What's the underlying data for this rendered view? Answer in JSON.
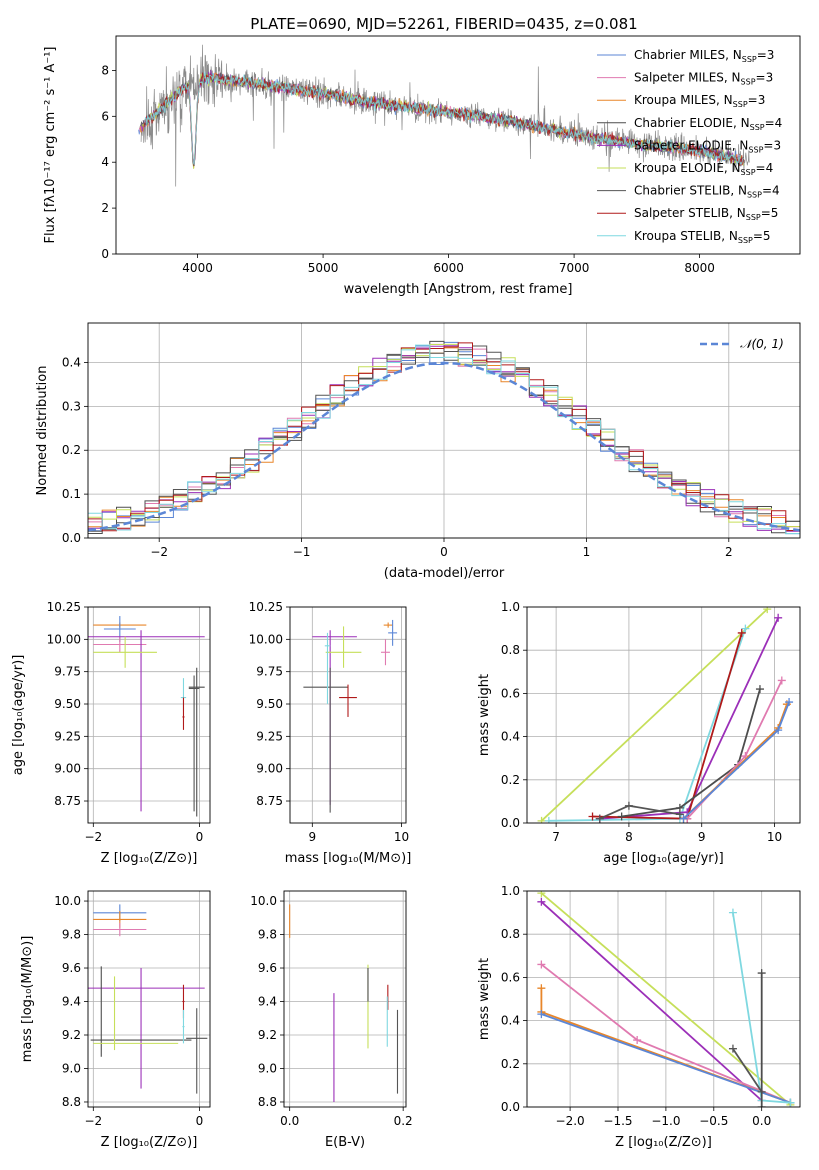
{
  "colors": {
    "chabrier_miles": "#5b86d6",
    "salpeter_miles": "#e07ab0",
    "kroupa_miles": "#e8862a",
    "chabrier_elodie": "#4d4d4d",
    "salpeter_elodie": "#9b2fb8",
    "kroupa_elodie": "#c6df5a",
    "chabrier_stelib": "#555555",
    "salpeter_stelib": "#b01a1a",
    "kroupa_stelib": "#7fd8e0",
    "data": "#8a8a8a"
  },
  "chart_data": [
    {
      "id": "spectrum",
      "type": "line",
      "title": "PLATE=0690, MJD=52261, FIBERID=0435, z=0.081",
      "xlabel": "wavelength [Angstrom, rest frame]",
      "ylabel": "Flux [fλ10⁻¹⁷ erg cm⁻² s⁻¹ A⁻¹]",
      "xlim": [
        3350,
        8800
      ],
      "ylim": [
        0,
        9.5
      ],
      "xticks": [
        "4000",
        "5000",
        "6000",
        "7000",
        "8000"
      ],
      "yticks": [
        "0",
        "2",
        "4",
        "6",
        "8"
      ],
      "legend_position": "right",
      "legend": [
        {
          "label": "Chabrier MILES, N",
          "sub": "SSP",
          "suffix": "=3",
          "key": "chabrier_miles"
        },
        {
          "label": "Salpeter MILES, N",
          "sub": "SSP",
          "suffix": "=3",
          "key": "salpeter_miles"
        },
        {
          "label": "Kroupa MILES, N",
          "sub": "SSP",
          "suffix": "=3",
          "key": "kroupa_miles"
        },
        {
          "label": "Chabrier ELODIE, N",
          "sub": "SSP",
          "suffix": "=4",
          "key": "chabrier_elodie"
        },
        {
          "label": "Salpeter ELODIE, N",
          "sub": "SSP",
          "suffix": "=3",
          "key": "salpeter_elodie"
        },
        {
          "label": "Kroupa ELODIE, N",
          "sub": "SSP",
          "suffix": "=4",
          "key": "kroupa_elodie"
        },
        {
          "label": "Chabrier STELIB, N",
          "sub": "SSP",
          "suffix": "=4",
          "key": "chabrier_stelib"
        },
        {
          "label": "Salpeter STELIB, N",
          "sub": "SSP",
          "suffix": "=5",
          "key": "salpeter_stelib"
        },
        {
          "label": "Kroupa STELIB, N",
          "sub": "SSP",
          "suffix": "=5",
          "key": "kroupa_stelib"
        }
      ],
      "continuum": {
        "x": [
          3550,
          3700,
          3900,
          4100,
          4500,
          5000,
          5500,
          6000,
          6500,
          7000,
          7500,
          8000,
          8400
        ],
        "y": [
          5.5,
          6.3,
          7.3,
          7.7,
          7.4,
          7.0,
          6.5,
          6.2,
          5.8,
          5.2,
          4.8,
          4.5,
          4.0
        ]
      }
    },
    {
      "id": "residuals",
      "type": "line",
      "xlabel": "(data-model)/error",
      "ylabel": "Normed distribution",
      "xlim": [
        -2.5,
        2.5
      ],
      "ylim": [
        0,
        0.49
      ],
      "xticks": [
        "−2",
        "−1",
        "0",
        "1",
        "2"
      ],
      "yticks": [
        "0.0",
        "0.1",
        "0.2",
        "0.3",
        "0.4"
      ],
      "legend_position": "top-right",
      "legend": [
        {
          "label": "𝒩(0, 1)",
          "key": "chabrier_miles"
        }
      ],
      "bin_width": 0.1
    },
    {
      "id": "age_vs_Z",
      "type": "scatter",
      "xlabel": "Z [log₁₀(Z/Z⊙)]",
      "ylabel": "age  [log₁₀(age/yr)]",
      "xlim": [
        -2.1,
        0.2
      ],
      "ylim": [
        8.58,
        10.25
      ],
      "xticks": [
        "−2",
        "0"
      ],
      "yticks": [
        "8.75",
        "9.00",
        "9.25",
        "9.50",
        "9.75",
        "10.00",
        "10.25"
      ],
      "points": [
        {
          "key": "kroupa_miles",
          "x": -1.5,
          "y": 10.11,
          "xerr": [
            0.5,
            0.5
          ],
          "yerr": [
            0.02,
            0.02
          ]
        },
        {
          "key": "chabrier_miles",
          "x": -1.5,
          "y": 10.08,
          "xerr": [
            0.3,
            0.3
          ],
          "yerr": [
            0.1,
            0.1
          ]
        },
        {
          "key": "salpeter_miles",
          "x": -1.5,
          "y": 9.96,
          "xerr": [
            0.5,
            0.5
          ],
          "yerr": [
            0.06,
            0.06
          ]
        },
        {
          "key": "salpeter_elodie",
          "x": -1.1,
          "y": 10.02,
          "xerr": [
            1.2,
            1.2
          ],
          "yerr": [
            1.35,
            0.05
          ]
        },
        {
          "key": "kroupa_elodie",
          "x": -1.4,
          "y": 9.9,
          "xerr": [
            0.6,
            0.6
          ],
          "yerr": [
            0.12,
            0.12
          ]
        },
        {
          "key": "chabrier_elodie",
          "x": -0.05,
          "y": 9.63,
          "xerr": [
            0.15,
            0.15
          ],
          "yerr": [
            1.0,
            0.15
          ]
        },
        {
          "key": "chabrier_stelib",
          "x": -0.1,
          "y": 9.62,
          "xerr": [
            0.1,
            0.1
          ],
          "yerr": [
            0.95,
            0.1
          ]
        },
        {
          "key": "kroupa_stelib",
          "x": -0.3,
          "y": 9.55,
          "xerr": [
            0.05,
            0.05
          ],
          "yerr": [
            0.1,
            0.15
          ]
        },
        {
          "key": "salpeter_stelib",
          "x": -0.3,
          "y": 9.4,
          "xerr": [
            0.02,
            0.02
          ],
          "yerr": [
            0.1,
            0.15
          ]
        }
      ]
    },
    {
      "id": "age_vs_mass",
      "type": "scatter",
      "xlabel": "mass [log₁₀(M/M⊙)]",
      "ylabel": "",
      "xlim": [
        8.75,
        10.05
      ],
      "ylim": [
        8.58,
        10.25
      ],
      "xticks": [
        "9",
        "10"
      ],
      "yticks": [
        "8.75",
        "9.00",
        "9.25",
        "9.50",
        "9.75",
        "10.00",
        "10.25"
      ],
      "points": [
        {
          "key": "kroupa_miles",
          "x": 9.85,
          "y": 10.11,
          "xerr": [
            0.05,
            0.05
          ],
          "yerr": [
            0.02,
            0.02
          ]
        },
        {
          "key": "chabrier_miles",
          "x": 9.9,
          "y": 10.05,
          "xerr": [
            0.05,
            0.05
          ],
          "yerr": [
            0.1,
            0.1
          ]
        },
        {
          "key": "salpeter_miles",
          "x": 9.82,
          "y": 9.9,
          "xerr": [
            0.05,
            0.05
          ],
          "yerr": [
            0.1,
            0.1
          ]
        },
        {
          "key": "salpeter_elodie",
          "x": 9.2,
          "y": 10.02,
          "xerr": [
            0.2,
            0.3
          ],
          "yerr": [
            1.3,
            0.05
          ]
        },
        {
          "key": "kroupa_elodie",
          "x": 9.35,
          "y": 9.9,
          "xerr": [
            0.2,
            0.2
          ],
          "yerr": [
            0.12,
            0.2
          ]
        },
        {
          "key": "chabrier_stelib",
          "x": 9.2,
          "y": 9.63,
          "xerr": [
            0.3,
            0.2
          ],
          "yerr": [
            0.97,
            0.15
          ]
        },
        {
          "key": "salpeter_stelib",
          "x": 9.4,
          "y": 9.55,
          "xerr": [
            0.1,
            0.1
          ],
          "yerr": [
            0.15,
            0.1
          ]
        },
        {
          "key": "kroupa_stelib",
          "x": 9.17,
          "y": 9.95,
          "xerr": [
            0.03,
            0.03
          ],
          "yerr": [
            0.45,
            0.1
          ]
        }
      ]
    },
    {
      "id": "weight_vs_age",
      "type": "line",
      "xlabel": "age  [log₁₀(age/yr)]",
      "ylabel": "mass weight",
      "xlim": [
        6.6,
        10.35
      ],
      "ylim": [
        0,
        1
      ],
      "xticks": [
        "7",
        "8",
        "9",
        "10"
      ],
      "yticks": [
        "0.0",
        "0.2",
        "0.4",
        "0.6",
        "0.8",
        "1.0"
      ],
      "series": [
        {
          "key": "kroupa_elodie",
          "x": [
            6.8,
            9.9
          ],
          "y": [
            0.01,
            0.99
          ]
        },
        {
          "key": "kroupa_stelib",
          "x": [
            6.9,
            8.7,
            9.6
          ],
          "y": [
            0.01,
            0.02,
            0.9
          ]
        },
        {
          "key": "salpeter_elodie",
          "x": [
            7.6,
            8.8,
            10.05
          ],
          "y": [
            0.02,
            0.05,
            0.95
          ]
        },
        {
          "key": "salpeter_stelib",
          "x": [
            7.5,
            8.8,
            9.55
          ],
          "y": [
            0.03,
            0.02,
            0.88
          ]
        },
        {
          "key": "chabrier_elodie",
          "x": [
            7.9,
            8.7,
            9.5,
            9.8
          ],
          "y": [
            0.03,
            0.07,
            0.27,
            0.62
          ]
        },
        {
          "key": "salpeter_miles",
          "x": [
            8.8,
            9.6,
            10.1
          ],
          "y": [
            0.02,
            0.31,
            0.66
          ]
        },
        {
          "key": "kroupa_miles",
          "x": [
            8.75,
            10.05,
            10.17
          ],
          "y": [
            0.02,
            0.44,
            0.55
          ]
        },
        {
          "key": "chabrier_miles",
          "x": [
            8.75,
            10.05,
            10.2
          ],
          "y": [
            0.02,
            0.43,
            0.56
          ]
        },
        {
          "key": "chabrier_stelib",
          "x": [
            7.6,
            8.0,
            8.7
          ],
          "y": [
            0.02,
            0.08,
            0.04
          ]
        }
      ]
    },
    {
      "id": "mass_vs_Z",
      "type": "scatter",
      "xlabel": "Z [log₁₀(Z/Z⊙)]",
      "ylabel": "mass [log₁₀(M/M⊙)]",
      "xlim": [
        -2.1,
        0.2
      ],
      "ylim": [
        8.77,
        10.06
      ],
      "xticks": [
        "−2",
        "0"
      ],
      "yticks": [
        "8.8",
        "9.0",
        "9.2",
        "9.4",
        "9.6",
        "9.8",
        "10.0"
      ],
      "points": [
        {
          "key": "chabrier_miles",
          "x": -1.5,
          "y": 9.93,
          "xerr": [
            0.5,
            0.5
          ],
          "yerr": [
            0.05,
            0.05
          ]
        },
        {
          "key": "kroupa_miles",
          "x": -1.5,
          "y": 9.89,
          "xerr": [
            0.5,
            0.5
          ],
          "yerr": [
            0.05,
            0.05
          ]
        },
        {
          "key": "salpeter_miles",
          "x": -1.5,
          "y": 9.83,
          "xerr": [
            0.5,
            0.5
          ],
          "yerr": [
            0.04,
            0.04
          ]
        },
        {
          "key": "salpeter_elodie",
          "x": -1.1,
          "y": 9.48,
          "xerr": [
            1.2,
            1.2
          ],
          "yerr": [
            0.6,
            0.12
          ]
        },
        {
          "key": "chabrier_elodie",
          "x": -1.85,
          "y": 9.17,
          "xerr": [
            0.2,
            1.7
          ],
          "yerr": [
            0.1,
            0.44
          ]
        },
        {
          "key": "kroupa_elodie",
          "x": -1.6,
          "y": 9.15,
          "xerr": [
            0.4,
            1.2
          ],
          "yerr": [
            0.04,
            0.4
          ]
        },
        {
          "key": "salpeter_stelib",
          "x": -0.3,
          "y": 9.4,
          "xerr": [
            0.02,
            0.02
          ],
          "yerr": [
            0.1,
            0.1
          ]
        },
        {
          "key": "kroupa_stelib",
          "x": -0.3,
          "y": 9.25,
          "xerr": [
            0.02,
            0.02
          ],
          "yerr": [
            0.1,
            0.1
          ]
        },
        {
          "key": "chabrier_stelib",
          "x": -0.05,
          "y": 9.18,
          "xerr": [
            0.2,
            0.2
          ],
          "yerr": [
            0.33,
            0.18
          ]
        }
      ]
    },
    {
      "id": "mass_vs_ebv",
      "type": "scatter",
      "xlabel": "E(B-V)",
      "ylabel": "",
      "xlim": [
        -0.01,
        0.205
      ],
      "ylim": [
        8.77,
        10.06
      ],
      "xticks": [
        "0.0",
        "0.2"
      ],
      "yticks": [
        "8.8",
        "9.0",
        "9.2",
        "9.4",
        "9.6",
        "9.8",
        "10.0"
      ],
      "points": [
        {
          "key": "kroupa_miles",
          "x": 0.0,
          "y": 9.88,
          "xerr": [
            0,
            0
          ],
          "yerr": [
            0.1,
            0.1
          ]
        },
        {
          "key": "salpeter_elodie",
          "x": 0.078,
          "y": 9.3,
          "xerr": [
            0,
            0
          ],
          "yerr": [
            0.5,
            0.15
          ]
        },
        {
          "key": "kroupa_elodie",
          "x": 0.138,
          "y": 9.37,
          "xerr": [
            0,
            0
          ],
          "yerr": [
            0.25,
            0.25
          ]
        },
        {
          "key": "chabrier_elodie",
          "x": 0.138,
          "y": 9.5,
          "xerr": [
            0,
            0
          ],
          "yerr": [
            0.1,
            0.1
          ]
        },
        {
          "key": "salpeter_stelib",
          "x": 0.173,
          "y": 9.45,
          "xerr": [
            0,
            0
          ],
          "yerr": [
            0.1,
            0.05
          ]
        },
        {
          "key": "kroupa_stelib",
          "x": 0.172,
          "y": 9.28,
          "xerr": [
            0,
            0
          ],
          "yerr": [
            0.15,
            0.15
          ]
        },
        {
          "key": "chabrier_stelib",
          "x": 0.19,
          "y": 9.1,
          "xerr": [
            0,
            0
          ],
          "yerr": [
            0.25,
            0.25
          ]
        }
      ]
    },
    {
      "id": "weight_vs_Z",
      "type": "line",
      "xlabel": "Z [log₁₀(Z/Z⊙)]",
      "ylabel": "mass weight",
      "xlim": [
        -2.45,
        0.4
      ],
      "ylim": [
        0,
        1
      ],
      "xticks": [
        "−2.0",
        "−1.5",
        "−1.0",
        "−0.5",
        "0.0"
      ],
      "yticks": [
        "0.0",
        "0.2",
        "0.4",
        "0.6",
        "0.8",
        "1.0"
      ],
      "series": [
        {
          "key": "kroupa_elodie",
          "x": [
            -2.3,
            0.3
          ],
          "y": [
            0.99,
            0.01
          ]
        },
        {
          "key": "salpeter_elodie",
          "x": [
            -2.3,
            0.0
          ],
          "y": [
            0.95,
            0.03
          ]
        },
        {
          "key": "salpeter_miles",
          "x": [
            -2.3,
            -1.3,
            0.3
          ],
          "y": [
            0.66,
            0.31,
            0.02
          ]
        },
        {
          "key": "kroupa_miles",
          "x": [
            -2.3,
            -2.3,
            0.3
          ],
          "y": [
            0.55,
            0.44,
            0.02
          ]
        },
        {
          "key": "chabrier_miles",
          "x": [
            -2.3,
            0.3
          ],
          "y": [
            0.43,
            0.02
          ]
        },
        {
          "key": "kroupa_stelib",
          "x": [
            -0.3,
            0.0,
            0.3
          ],
          "y": [
            0.9,
            0.03,
            0.02
          ]
        },
        {
          "key": "chabrier_stelib",
          "x": [
            -0.3,
            0.0
          ],
          "y": [
            0.27,
            0.07
          ]
        },
        {
          "key": "chabrier_elodie",
          "x": [
            0.0,
            0.0
          ],
          "y": [
            0.62,
            0.0
          ]
        }
      ]
    }
  ]
}
